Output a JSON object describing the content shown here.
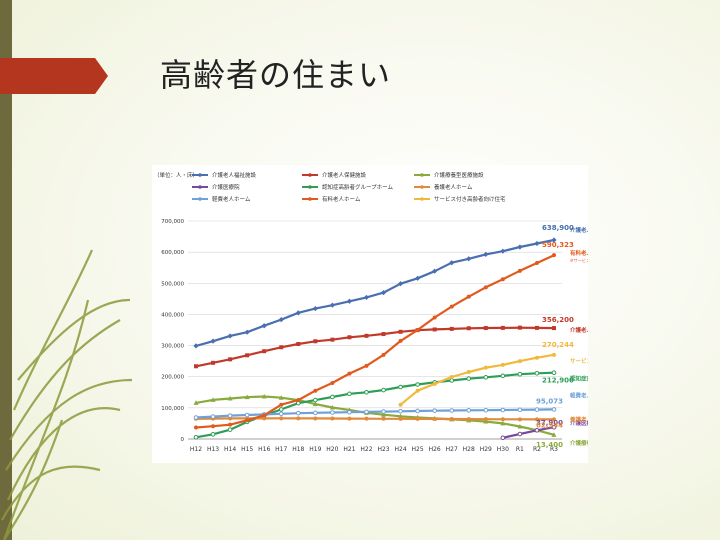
{
  "slide": {
    "title": "高齢者の住まい"
  },
  "colors": {
    "band": "#6f6a3e",
    "arrow": "#b5361e",
    "leaf": "#8c9a3b"
  },
  "chart_data": {
    "type": "line",
    "unit_label": "（単位：人・床）",
    "x": [
      "H12",
      "H13",
      "H14",
      "H15",
      "H16",
      "H17",
      "H18",
      "H19",
      "H20",
      "H21",
      "H22",
      "H23",
      "H24",
      "H25",
      "H26",
      "H27",
      "H28",
      "H29",
      "H30",
      "R1",
      "R2",
      "R3"
    ],
    "ylim": [
      0,
      700000
    ],
    "yticks": [
      "0",
      "100,000",
      "200,000",
      "300,000",
      "400,000",
      "500,000",
      "600,000",
      "700,000"
    ],
    "grid": true,
    "legend_position": "top",
    "series": [
      {
        "name": "介護老人福祉施設",
        "color": "#4a6fb0",
        "marker": "diamond",
        "values": [
          298912,
          314192,
          330916,
          342970,
          363747,
          383326,
          405093,
          418800,
          429700,
          442300,
          454600,
          470000,
          498700,
          516000,
          538900,
          566000,
          578700,
          592800,
          603000,
          616500,
          627900,
          638900
        ],
        "end_value": "638,900",
        "end_label": "介護老人福祉施設",
        "end_note": ""
      },
      {
        "name": "介護老人保健施設",
        "color": "#c0392b",
        "marker": "square",
        "values": [
          233536,
          244627,
          255846,
          268755,
          281869,
          294600,
          305000,
          313800,
          319000,
          326700,
          331300,
          337000,
          344300,
          349500,
          351800,
          353600,
          355600,
          356300,
          356800,
          357500,
          356800,
          356200
        ],
        "end_value": "356,200",
        "end_label": "介護老人保健施設",
        "end_note": ""
      },
      {
        "name": "介護療養型医療施設",
        "color": "#8aab3c",
        "marker": "triangle",
        "values": [
          116051,
          125652,
          130164,
          134500,
          136600,
          132600,
          125000,
          112000,
          101000,
          93000,
          84000,
          78000,
          73000,
          69000,
          66000,
          63000,
          60000,
          56000,
          50000,
          40000,
          28000,
          13400
        ],
        "end_value": "13,400",
        "end_label": "介護療養型医療施設",
        "end_note": ""
      },
      {
        "name": "介護医療院",
        "color": "#7a4a9a",
        "marker": "x",
        "values": [
          null,
          null,
          null,
          null,
          null,
          null,
          null,
          null,
          null,
          null,
          null,
          null,
          null,
          null,
          null,
          null,
          null,
          null,
          4000,
          16000,
          28000,
          37900
        ],
        "end_value": "37,900",
        "end_label": "介護医療院",
        "end_note": ""
      },
      {
        "name": "認知症高齢者グループホーム",
        "color": "#2e9e57",
        "marker": "star",
        "values": [
          5500,
          15000,
          30000,
          55000,
          75000,
          95000,
          115000,
          125000,
          135000,
          145000,
          150000,
          157000,
          167000,
          175000,
          182000,
          188000,
          194000,
          198000,
          203000,
          208000,
          211000,
          212900
        ],
        "end_value": "212,900",
        "end_label": "認知症高齢者グループホーム",
        "end_note": ""
      },
      {
        "name": "養護老人ホーム",
        "color": "#e08a3c",
        "marker": "circle",
        "values": [
          65000,
          65500,
          66000,
          66200,
          66300,
          66400,
          66200,
          66000,
          65800,
          65500,
          65300,
          65000,
          64800,
          64600,
          64400,
          64200,
          64000,
          63700,
          63400,
          63200,
          63000,
          62944
        ],
        "end_value": "62,944",
        "end_label": "養護老人ホーム",
        "end_note": ""
      },
      {
        "name": "軽費老人ホーム",
        "color": "#6fa0d8",
        "marker": "plus",
        "values": [
          69000,
          72000,
          75000,
          77000,
          79000,
          81000,
          83000,
          84000,
          85000,
          86000,
          87000,
          88000,
          89000,
          90000,
          91000,
          91500,
          92000,
          92500,
          93000,
          93800,
          94500,
          95073
        ],
        "end_value": "95,073",
        "end_label": "軽費老人ホーム",
        "end_note": ""
      },
      {
        "name": "有料老人ホーム",
        "color": "#e05a1e",
        "marker": "circle",
        "values": [
          36855,
          41000,
          46000,
          60000,
          76000,
          110000,
          125000,
          155000,
          180000,
          210000,
          235000,
          270000,
          315000,
          350000,
          390000,
          425000,
          457000,
          487000,
          513000,
          540000,
          565000,
          590323
        ],
        "end_value": "590,323",
        "end_label": "有料老人ホーム",
        "end_note": "※サービス付き高齢者向け住宅を除く"
      },
      {
        "name": "サービス付き高齢者向け住宅",
        "color": "#f0b93a",
        "marker": "circle",
        "values": [
          null,
          null,
          null,
          null,
          null,
          null,
          null,
          null,
          null,
          null,
          null,
          null,
          110000,
          155000,
          177000,
          199000,
          215000,
          229000,
          238000,
          250000,
          261000,
          270244
        ],
        "end_value": "270,244",
        "end_label": "サービス付き高齢者向け住宅",
        "end_note": ""
      }
    ]
  }
}
